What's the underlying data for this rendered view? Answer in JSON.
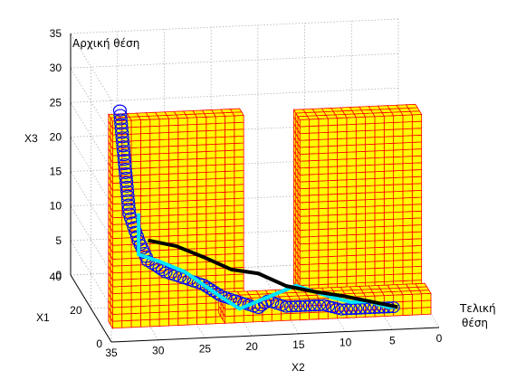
{
  "chart_data": {
    "type": "scatter",
    "projection": "3d",
    "grid": true,
    "xlabel": "X2",
    "ylabel": "X1",
    "zlabel": "X3",
    "x_ticks": [
      35,
      30,
      25,
      20,
      15,
      10,
      5,
      0
    ],
    "y_ticks": [
      0,
      20,
      40
    ],
    "z_ticks": [
      0,
      5,
      10,
      15,
      20,
      25,
      30,
      35
    ],
    "xlim": [
      0,
      35
    ],
    "ylim": [
      0,
      40
    ],
    "zlim": [
      0,
      35
    ],
    "annotations": {
      "start": "Αρχική θέση",
      "end_line1": "Τελική",
      "end_line2": "θέση"
    },
    "colors": {
      "obstacle_fill": "#ffff00",
      "obstacle_edge": "#ff0000",
      "circles": "#0000ff",
      "path_cyan": "#00e5ff",
      "path_black": "#000000",
      "grid": "#b0b0b0"
    },
    "series": [
      {
        "name": "",
        "style": "circles",
        "x": [
          33,
          32,
          31,
          30,
          29,
          28,
          26,
          24,
          22,
          20,
          18,
          17,
          15,
          13,
          11,
          9,
          7,
          5,
          3
        ],
        "y": [
          10,
          10,
          10,
          10,
          11,
          11,
          11,
          11,
          12,
          12,
          12,
          12,
          12,
          12,
          12,
          13,
          13,
          13,
          13
        ],
        "z": [
          31,
          16,
          12,
          9,
          8,
          7,
          6,
          5,
          3,
          2,
          1,
          2,
          1,
          1,
          1,
          0,
          0,
          0,
          0
        ]
      },
      {
        "name": "",
        "style": "cyan-line",
        "x": [
          31,
          31,
          29,
          26,
          24,
          22,
          20,
          18,
          16,
          14,
          12,
          10,
          8,
          6,
          4,
          3
        ],
        "y": [
          10,
          10,
          10,
          11,
          11,
          11,
          12,
          12,
          12,
          12,
          12,
          12,
          13,
          13,
          13,
          13
        ],
        "z": [
          16,
          10,
          9,
          7,
          5,
          3,
          1,
          2,
          3,
          4,
          3,
          2,
          1,
          1,
          0,
          0
        ]
      },
      {
        "name": "",
        "style": "black-line",
        "x": [
          30,
          27,
          24,
          21,
          18,
          15,
          12,
          9,
          6,
          3
        ],
        "y": [
          10,
          10,
          11,
          11,
          12,
          12,
          12,
          13,
          13,
          13
        ],
        "z": [
          12,
          11,
          9,
          7,
          6,
          4,
          3,
          2,
          1,
          0
        ]
      }
    ],
    "obstacles": [
      {
        "name": "left-block",
        "x": [
          20,
          34
        ],
        "y": [
          8,
          12
        ],
        "z": [
          0,
          30
        ]
      },
      {
        "name": "right-block",
        "x": [
          1,
          14
        ],
        "y": [
          8,
          14
        ],
        "z": [
          0,
          29
        ]
      },
      {
        "name": "floor-slab",
        "x": [
          0,
          22
        ],
        "y": [
          8,
          14
        ],
        "z": [
          0,
          3
        ]
      }
    ]
  }
}
